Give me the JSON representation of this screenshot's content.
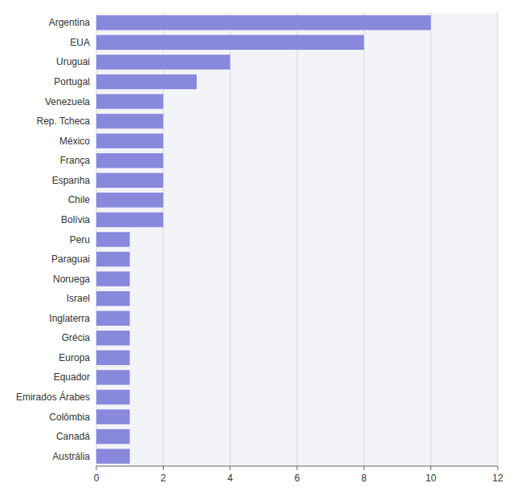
{
  "chart_data": {
    "type": "bar",
    "orientation": "horizontal",
    "categories": [
      "Austrália",
      "Canadá",
      "Colômbia",
      "Emirados Árabes",
      "Equador",
      "Europa",
      "Grécia",
      "Inglaterra",
      "Israel",
      "Noruega",
      "Paraguai",
      "Peru",
      "Bolívia",
      "Chile",
      "Espanha",
      "França",
      "México",
      "Rep. Tcheca",
      "Venezuela",
      "Portugal",
      "Uruguai",
      "EUA",
      "Argentina"
    ],
    "values": [
      1,
      1,
      1,
      1,
      1,
      1,
      1,
      1,
      1,
      1,
      1,
      1,
      2,
      2,
      2,
      2,
      2,
      2,
      2,
      3,
      4,
      8,
      10
    ],
    "color": "#8888dd",
    "xlim": [
      0,
      12
    ],
    "xticks": [
      0,
      2,
      4,
      6,
      8,
      10,
      12
    ],
    "grid": true
  }
}
